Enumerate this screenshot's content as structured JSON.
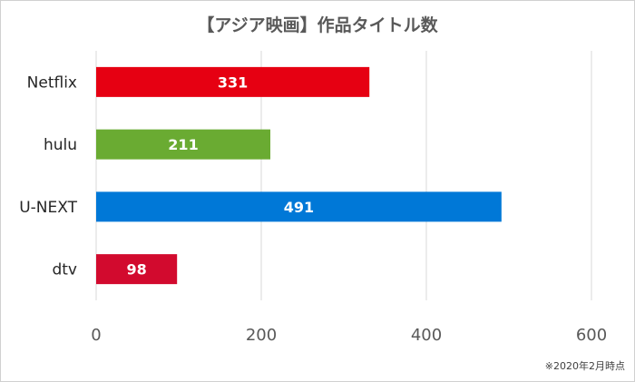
{
  "chart_data": {
    "type": "bar",
    "orientation": "horizontal",
    "title": "【アジア映画】作品タイトル数",
    "note": "※2020年2月時点",
    "categories": [
      "Netflix",
      "hulu",
      "U-NEXT",
      "dtv"
    ],
    "values": [
      331,
      211,
      491,
      98
    ],
    "colors": [
      "#e60012",
      "#6aab32",
      "#0078d7",
      "#d20a2e"
    ],
    "xlim": [
      0,
      600
    ],
    "xticks": [
      0,
      200,
      400,
      600
    ],
    "grid": true,
    "data_labels": true,
    "legend": "none"
  }
}
